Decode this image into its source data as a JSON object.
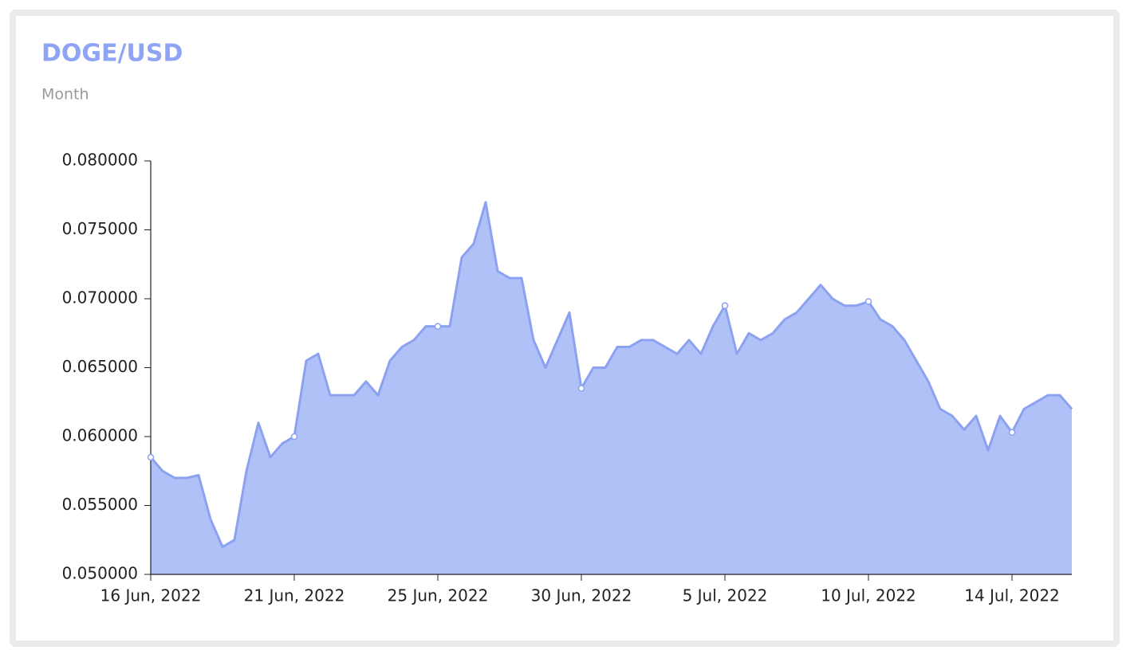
{
  "chart_data": {
    "type": "area",
    "title": "DOGE/USD",
    "subtitle": "Month",
    "categories": [
      "16 Jun, 2022",
      null,
      null,
      null,
      null,
      null,
      null,
      null,
      null,
      null,
      null,
      null,
      "21 Jun, 2022",
      null,
      null,
      null,
      null,
      null,
      null,
      null,
      null,
      null,
      null,
      null,
      "25 Jun, 2022",
      null,
      null,
      null,
      null,
      null,
      null,
      null,
      null,
      null,
      null,
      null,
      "30 Jun, 2022",
      null,
      null,
      null,
      null,
      null,
      null,
      null,
      null,
      null,
      null,
      null,
      "5 Jul, 2022",
      null,
      null,
      null,
      null,
      null,
      null,
      null,
      null,
      null,
      null,
      null,
      "10 Jul, 2022",
      null,
      null,
      null,
      null,
      null,
      null,
      null,
      null,
      null,
      null,
      null,
      "14 Jul, 2022",
      null,
      null,
      null,
      null,
      null
    ],
    "values": [
      0.0585,
      0.0575,
      0.057,
      0.057,
      0.0572,
      0.054,
      0.052,
      0.0525,
      0.0575,
      0.061,
      0.0585,
      0.0595,
      0.06,
      0.0655,
      0.066,
      0.063,
      0.063,
      0.063,
      0.064,
      0.063,
      0.0655,
      0.0665,
      0.067,
      0.068,
      0.068,
      0.068,
      0.073,
      0.074,
      0.077,
      0.072,
      0.0715,
      0.0715,
      0.067,
      0.065,
      0.067,
      0.069,
      0.0635,
      0.065,
      0.065,
      0.0665,
      0.0665,
      0.067,
      0.067,
      0.0665,
      0.066,
      0.067,
      0.066,
      0.068,
      0.0695,
      0.066,
      0.0675,
      0.067,
      0.0675,
      0.0685,
      0.069,
      0.07,
      0.071,
      0.07,
      0.0695,
      0.0695,
      0.0698,
      0.0685,
      0.068,
      0.067,
      0.0655,
      0.064,
      0.062,
      0.0615,
      0.0605,
      0.0615,
      0.059,
      0.0615,
      0.0603,
      0.062,
      0.0625,
      0.063,
      0.063,
      0.062
    ],
    "color": "#8ca2f0",
    "fill": "#b0c1f7",
    "ylim": [
      0.05,
      0.08
    ],
    "yticks": [
      {
        "value": 0.05,
        "label": "0.050000"
      },
      {
        "value": 0.055,
        "label": "0.055000"
      },
      {
        "value": 0.06,
        "label": "0.060000"
      },
      {
        "value": 0.065,
        "label": "0.065000"
      },
      {
        "value": 0.07,
        "label": "0.070000"
      },
      {
        "value": 0.075,
        "label": "0.075000"
      },
      {
        "value": 0.08,
        "label": "0.080000"
      }
    ],
    "grid": false
  }
}
